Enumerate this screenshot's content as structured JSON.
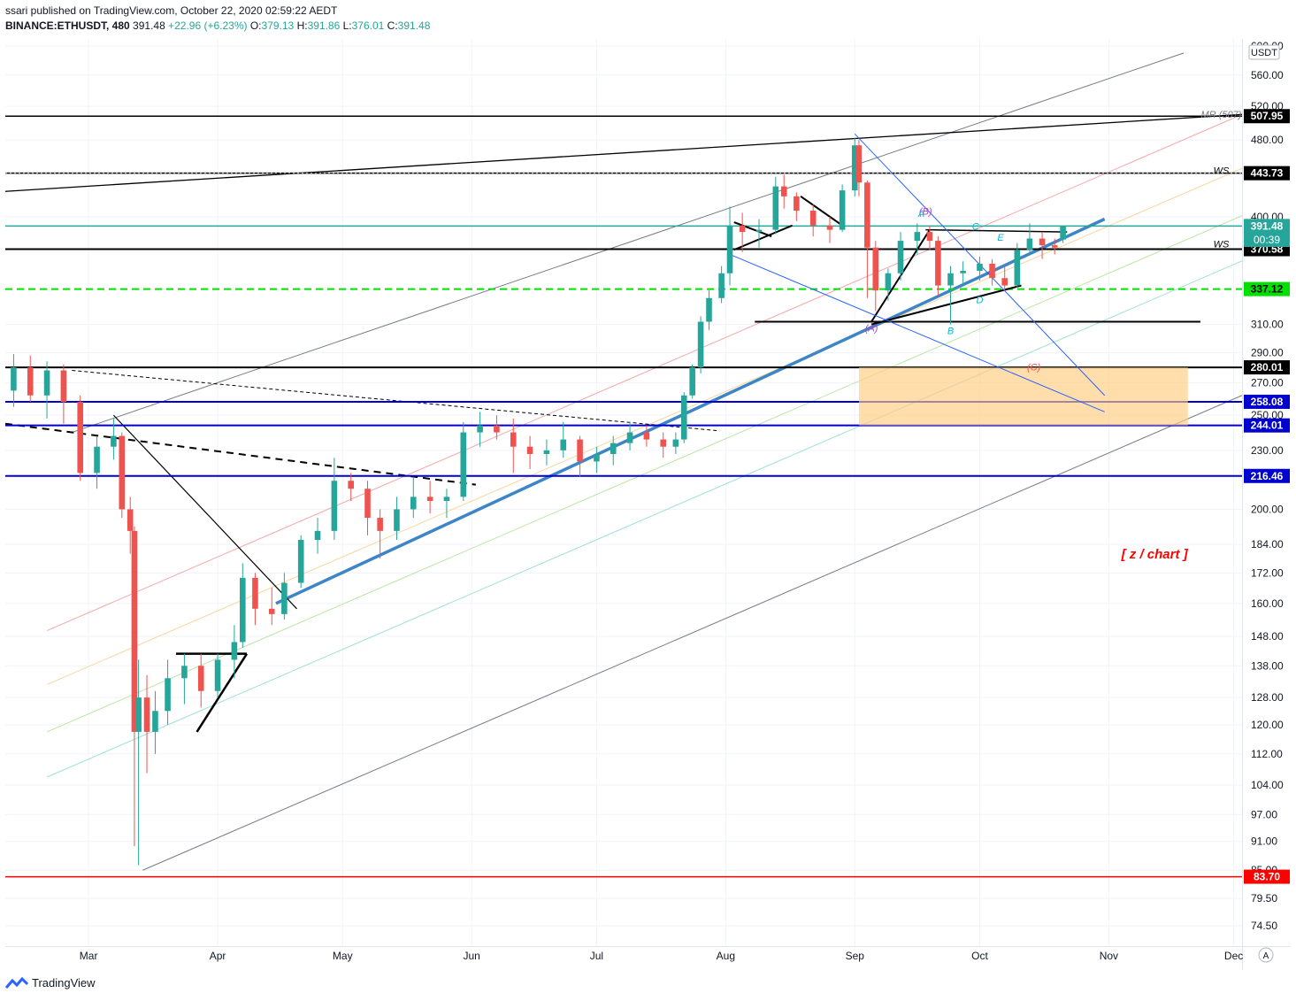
{
  "header": {
    "published_line": "ssari published on TradingView.com, October 22, 2020 02:59:22 AEDT",
    "symbol": "BINANCE:ETHUSDT, 480",
    "last": "391.48",
    "change": "+22.96 (+6.23%)",
    "o_label": "O:",
    "o_value": "379.13",
    "h_label": "H:",
    "h_value": "391.86",
    "l_label": "L:",
    "l_value": "376.01",
    "c_label": "C:",
    "c_value": "391.48"
  },
  "footer": {
    "brand": "TradingView",
    "auto_scale_label": "A"
  },
  "chart_data": {
    "type": "candlestick",
    "symbol": "ETHUSDT",
    "exchange": "BINANCE",
    "interval": "480",
    "currency_label": "USDT",
    "y_scale": "log",
    "ylim": [
      71,
      610
    ],
    "xlim": [
      "2020-02-10",
      "2020-12-03"
    ],
    "x_ticks": [
      {
        "date": "2020-03-01",
        "label": "Mar"
      },
      {
        "date": "2020-04-01",
        "label": "Apr"
      },
      {
        "date": "2020-05-01",
        "label": "May"
      },
      {
        "date": "2020-06-01",
        "label": "Jun"
      },
      {
        "date": "2020-07-01",
        "label": "Jul"
      },
      {
        "date": "2020-08-01",
        "label": "Aug"
      },
      {
        "date": "2020-09-01",
        "label": "Sep"
      },
      {
        "date": "2020-10-01",
        "label": "Oct"
      },
      {
        "date": "2020-11-01",
        "label": "Nov"
      },
      {
        "date": "2020-12-01",
        "label": "Dec"
      }
    ],
    "y_ticks": [
      "600.00",
      "560.00",
      "520.00",
      "480.00",
      "400.00",
      "310.00",
      "290.00",
      "270.00",
      "250.00",
      "230.00",
      "200.00",
      "184.00",
      "172.00",
      "160.00",
      "148.00",
      "138.00",
      "128.00",
      "120.00",
      "112.00",
      "104.00",
      "97.00",
      "91.00",
      "85.00",
      "79.50",
      "74.50"
    ],
    "price_labels": [
      {
        "value": 507.95,
        "text": "507.95",
        "color": "#000000"
      },
      {
        "value": 443.73,
        "text": "443.73",
        "color": "#000000"
      },
      {
        "value": 391.48,
        "text": "391.48",
        "color": "#26a69a"
      },
      {
        "value": 370.58,
        "text": "370.58",
        "color": "#000000"
      },
      {
        "value": 337.12,
        "text": "337.12",
        "color": "#00e000"
      },
      {
        "value": 280.01,
        "text": "280.01",
        "color": "#000000"
      },
      {
        "value": 258.08,
        "text": "258.08",
        "color": "#0000cc"
      },
      {
        "value": 244.01,
        "text": "244.01",
        "color": "#0000cc"
      },
      {
        "value": 216.46,
        "text": "216.46",
        "color": "#0000cc"
      },
      {
        "value": 83.7,
        "text": "83.70",
        "color": "#ff0000"
      }
    ],
    "countdown_label": "00:39",
    "series": [
      {
        "name": "ETHUSDT",
        "type": "candles",
        "ohlc": [
          [
            "2020-02-12",
            265,
            289,
            255,
            280
          ],
          [
            "2020-02-16",
            280,
            288,
            258,
            262
          ],
          [
            "2020-02-20",
            262,
            284,
            248,
            278
          ],
          [
            "2020-02-24",
            278,
            282,
            245,
            258
          ],
          [
            "2020-02-28",
            258,
            262,
            214,
            218
          ],
          [
            "2020-03-03",
            218,
            238,
            210,
            232
          ],
          [
            "2020-03-07",
            232,
            248,
            225,
            238
          ],
          [
            "2020-03-09",
            238,
            240,
            196,
            200
          ],
          [
            "2020-03-11",
            200,
            206,
            180,
            190
          ],
          [
            "2020-03-12",
            190,
            192,
            90,
            118
          ],
          [
            "2020-03-13",
            118,
            140,
            86,
            128
          ],
          [
            "2020-03-15",
            128,
            135,
            107,
            118
          ],
          [
            "2020-03-17",
            118,
            130,
            112,
            124
          ],
          [
            "2020-03-20",
            124,
            140,
            120,
            134
          ],
          [
            "2020-03-24",
            134,
            142,
            126,
            138
          ],
          [
            "2020-03-28",
            138,
            142,
            125,
            130
          ],
          [
            "2020-04-01",
            130,
            142,
            128,
            140
          ],
          [
            "2020-04-05",
            140,
            152,
            134,
            146
          ],
          [
            "2020-04-07",
            146,
            176,
            144,
            170
          ],
          [
            "2020-04-10",
            170,
            172,
            152,
            158
          ],
          [
            "2020-04-14",
            158,
            166,
            152,
            156
          ],
          [
            "2020-04-17",
            156,
            172,
            154,
            168
          ],
          [
            "2020-04-21",
            168,
            188,
            166,
            186
          ],
          [
            "2020-04-25",
            186,
            196,
            180,
            190
          ],
          [
            "2020-04-29",
            190,
            226,
            186,
            214
          ],
          [
            "2020-05-03",
            214,
            218,
            204,
            210
          ],
          [
            "2020-05-07",
            210,
            214,
            188,
            196
          ],
          [
            "2020-05-10",
            196,
            200,
            178,
            190
          ],
          [
            "2020-05-14",
            190,
            206,
            186,
            200
          ],
          [
            "2020-05-18",
            200,
            216,
            196,
            206
          ],
          [
            "2020-05-22",
            206,
            214,
            198,
            204
          ],
          [
            "2020-05-26",
            204,
            210,
            196,
            206
          ],
          [
            "2020-05-30",
            206,
            246,
            204,
            240
          ],
          [
            "2020-06-03",
            240,
            252,
            232,
            244
          ],
          [
            "2020-06-07",
            244,
            250,
            236,
            240
          ],
          [
            "2020-06-11",
            240,
            248,
            218,
            232
          ],
          [
            "2020-06-15",
            232,
            238,
            220,
            228
          ],
          [
            "2020-06-19",
            228,
            236,
            222,
            230
          ],
          [
            "2020-06-23",
            230,
            246,
            226,
            236
          ],
          [
            "2020-06-27",
            236,
            238,
            216,
            224
          ],
          [
            "2020-07-01",
            224,
            232,
            218,
            228
          ],
          [
            "2020-07-05",
            228,
            238,
            222,
            234
          ],
          [
            "2020-07-09",
            234,
            246,
            230,
            240
          ],
          [
            "2020-07-13",
            240,
            244,
            232,
            236
          ],
          [
            "2020-07-17",
            236,
            240,
            226,
            232
          ],
          [
            "2020-07-20",
            232,
            240,
            228,
            236
          ],
          [
            "2020-07-22",
            236,
            264,
            234,
            262
          ],
          [
            "2020-07-24",
            262,
            282,
            260,
            280
          ],
          [
            "2020-07-26",
            280,
            316,
            276,
            312
          ],
          [
            "2020-07-28",
            312,
            336,
            306,
            330
          ],
          [
            "2020-07-31",
            330,
            356,
            326,
            350
          ],
          [
            "2020-08-02",
            350,
            410,
            340,
            392
          ],
          [
            "2020-08-05",
            392,
            404,
            368,
            386
          ],
          [
            "2020-08-09",
            386,
            398,
            372,
            388
          ],
          [
            "2020-08-13",
            388,
            440,
            384,
            430
          ],
          [
            "2020-08-15",
            430,
            442,
            408,
            420
          ],
          [
            "2020-08-18",
            420,
            424,
            396,
            406
          ],
          [
            "2020-08-22",
            406,
            412,
            382,
            392
          ],
          [
            "2020-08-26",
            392,
            400,
            376,
            388
          ],
          [
            "2020-08-29",
            388,
            432,
            386,
            426
          ],
          [
            "2020-09-01",
            426,
            482,
            420,
            474
          ],
          [
            "2020-09-02",
            474,
            480,
            420,
            434
          ],
          [
            "2020-09-04",
            434,
            436,
            330,
            372
          ],
          [
            "2020-09-06",
            372,
            378,
            320,
            336
          ],
          [
            "2020-09-09",
            336,
            354,
            328,
            350
          ],
          [
            "2020-09-12",
            350,
            386,
            344,
            378
          ],
          [
            "2020-09-16",
            378,
            394,
            366,
            386
          ],
          [
            "2020-09-19",
            386,
            392,
            370,
            378
          ],
          [
            "2020-09-21",
            378,
            382,
            332,
            340
          ],
          [
            "2020-09-24",
            340,
            356,
            310,
            350
          ],
          [
            "2020-09-27",
            350,
            360,
            340,
            352
          ],
          [
            "2020-10-01",
            352,
            364,
            344,
            358
          ],
          [
            "2020-10-04",
            358,
            362,
            340,
            346
          ],
          [
            "2020-10-07",
            346,
            356,
            336,
            340
          ],
          [
            "2020-10-10",
            340,
            376,
            338,
            370
          ],
          [
            "2020-10-13",
            370,
            394,
            366,
            380
          ],
          [
            "2020-10-16",
            380,
            386,
            362,
            374
          ],
          [
            "2020-10-19",
            374,
            380,
            366,
            372
          ],
          [
            "2020-10-21",
            379.13,
            391.86,
            376.01,
            391.48
          ]
        ]
      }
    ],
    "annotations": [
      "MR (507)",
      "WS",
      "WS",
      "(A)",
      "(B)",
      "(C)",
      "A",
      "B",
      "C",
      "D",
      "E",
      "[ z / chart ]"
    ],
    "grid": true,
    "legend": "none"
  }
}
